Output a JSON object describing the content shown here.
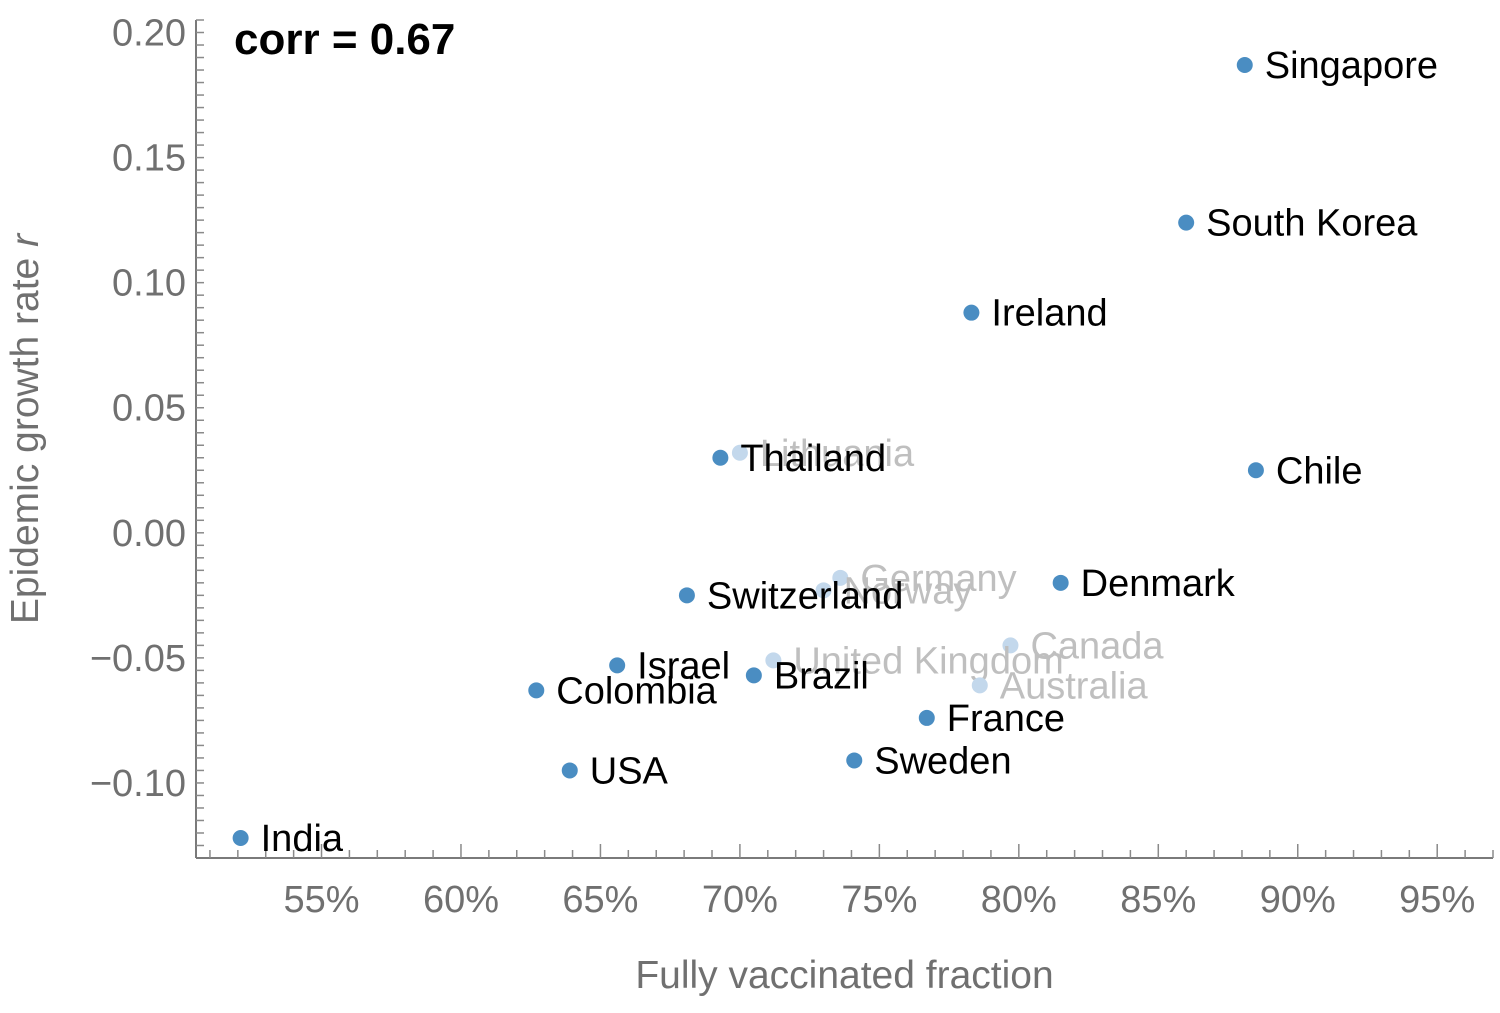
{
  "chart_data": {
    "type": "scatter",
    "xlabel": "Fully vaccinated fraction",
    "ylabel": "Epidemic growth rate",
    "ylabel_var": "r",
    "annotation": "corr = 0.67",
    "xlim": [
      0.505,
      0.97
    ],
    "ylim": [
      -0.13,
      0.205
    ],
    "x_ticks": [
      {
        "value": 0.55,
        "label": "55%"
      },
      {
        "value": 0.6,
        "label": "60%"
      },
      {
        "value": 0.65,
        "label": "65%"
      },
      {
        "value": 0.7,
        "label": "70%"
      },
      {
        "value": 0.75,
        "label": "75%"
      },
      {
        "value": 0.8,
        "label": "80%"
      },
      {
        "value": 0.85,
        "label": "85%"
      },
      {
        "value": 0.9,
        "label": "90%"
      },
      {
        "value": 0.95,
        "label": "95%"
      }
    ],
    "y_ticks": [
      {
        "value": 0.2,
        "label": "0.20"
      },
      {
        "value": 0.15,
        "label": "0.15"
      },
      {
        "value": 0.1,
        "label": "0.10"
      },
      {
        "value": 0.05,
        "label": "0.05"
      },
      {
        "value": 0.0,
        "label": "0.00"
      },
      {
        "value": -0.05,
        "label": "−0.05"
      },
      {
        "value": -0.1,
        "label": "−0.10"
      }
    ],
    "grid": false,
    "colors": {
      "point": "#4a8dc2",
      "point_faded": "#c3d8ec",
      "label": "#000000",
      "label_faded": "#bfbfbf",
      "axis": "#7a7a7a",
      "tick_label": "#707070"
    },
    "points": [
      {
        "name": "Singapore",
        "x": 0.881,
        "y": 0.187,
        "faded": false
      },
      {
        "name": "South Korea",
        "x": 0.86,
        "y": 0.124,
        "faded": false
      },
      {
        "name": "Ireland",
        "x": 0.783,
        "y": 0.088,
        "faded": false
      },
      {
        "name": "Chile",
        "x": 0.885,
        "y": 0.025,
        "faded": false
      },
      {
        "name": "Lithuania",
        "x": 0.7,
        "y": 0.032,
        "faded": true
      },
      {
        "name": "Thailand",
        "x": 0.693,
        "y": 0.03,
        "faded": false
      },
      {
        "name": "Denmark",
        "x": 0.815,
        "y": -0.02,
        "faded": false
      },
      {
        "name": "Germany",
        "x": 0.736,
        "y": -0.018,
        "faded": true
      },
      {
        "name": "Norway",
        "x": 0.73,
        "y": -0.023,
        "faded": true
      },
      {
        "name": "Switzerland",
        "x": 0.681,
        "y": -0.025,
        "faded": false
      },
      {
        "name": "Canada",
        "x": 0.797,
        "y": -0.045,
        "faded": true
      },
      {
        "name": "Israel",
        "x": 0.656,
        "y": -0.053,
        "faded": false
      },
      {
        "name": "United Kingdom",
        "x": 0.712,
        "y": -0.051,
        "faded": true
      },
      {
        "name": "Brazil",
        "x": 0.705,
        "y": -0.057,
        "faded": false
      },
      {
        "name": "Australia",
        "x": 0.786,
        "y": -0.061,
        "faded": true
      },
      {
        "name": "Colombia",
        "x": 0.627,
        "y": -0.063,
        "faded": false
      },
      {
        "name": "France",
        "x": 0.767,
        "y": -0.074,
        "faded": false
      },
      {
        "name": "Sweden",
        "x": 0.741,
        "y": -0.091,
        "faded": false
      },
      {
        "name": "USA",
        "x": 0.639,
        "y": -0.095,
        "faded": false
      },
      {
        "name": "India",
        "x": 0.521,
        "y": -0.122,
        "faded": false
      }
    ]
  }
}
